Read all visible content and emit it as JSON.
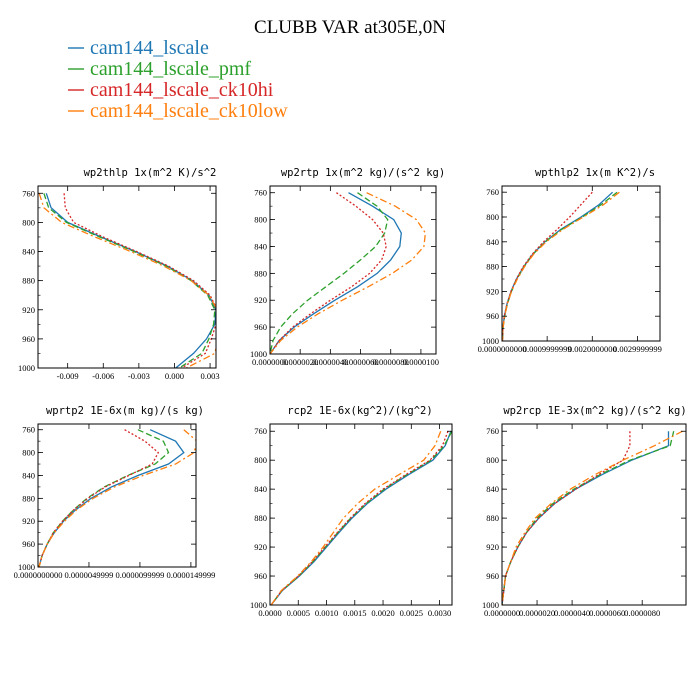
{
  "figure": {
    "title": "CLUBB VAR at305E,0N",
    "legend": [
      {
        "label": "cam144_lscale",
        "color": "#1f77b4"
      },
      {
        "label": "cam144_lscale_pmf",
        "color": "#2ca02c"
      },
      {
        "label": "cam144_lscale_ck10hi",
        "color": "#d62728"
      },
      {
        "label": "cam144_lscale_ck10low",
        "color": "#ff7f0e"
      }
    ]
  },
  "chart_data": [
    {
      "type": "line",
      "title": "wp2thlp  1x(m^2 K)/s^2",
      "xlim": [
        -0.0115,
        0.0035
      ],
      "ylim": [
        1000,
        750
      ],
      "xtick_values": [
        -0.009,
        -0.006,
        -0.003,
        0.0,
        0.003
      ],
      "xtick_labels": [
        "-0.009",
        "-0.006",
        "-0.003",
        "0.000",
        "0.003"
      ],
      "ytick_values": [
        760,
        800,
        840,
        880,
        920,
        960,
        1000
      ],
      "ytick_labels": [
        "760",
        "800",
        "840",
        "880",
        "920",
        "960",
        "1000"
      ],
      "y": [
        760,
        780,
        800,
        820,
        840,
        860,
        880,
        900,
        920,
        940,
        960,
        980,
        1000
      ],
      "series": [
        {
          "name": "cam144_lscale",
          "color": "#1f77b4",
          "dash": "solid",
          "values": [
            -0.0108,
            -0.0104,
            -0.009,
            -0.0062,
            -0.0033,
            -0.0006,
            0.0015,
            0.0029,
            0.0035,
            0.0034,
            0.0027,
            0.0016,
            0.0001
          ]
        },
        {
          "name": "cam144_lscale_pmf",
          "color": "#2ca02c",
          "dash": "dash",
          "values": [
            -0.011,
            -0.0106,
            -0.0091,
            -0.0063,
            -0.0034,
            -0.0007,
            0.0014,
            0.0028,
            0.0034,
            0.0033,
            0.0029,
            0.0023,
            0.0004
          ]
        },
        {
          "name": "cam144_lscale_ck10hi",
          "color": "#d62728",
          "dash": "dot",
          "values": [
            -0.0093,
            -0.0092,
            -0.0085,
            -0.006,
            -0.0032,
            -0.0005,
            0.0016,
            0.003,
            0.0036,
            0.0035,
            0.0031,
            0.0026,
            0.0006
          ]
        },
        {
          "name": "cam144_lscale_ck10low",
          "color": "#ff7f0e",
          "dash": "dashdot",
          "values": [
            -0.0114,
            -0.011,
            -0.0095,
            -0.0067,
            -0.0037,
            -0.0009,
            0.0014,
            0.0029,
            0.0036,
            0.0038,
            0.0037,
            0.0034,
            0.001
          ]
        }
      ]
    },
    {
      "type": "line",
      "title": "wp2rtp  1x(m^2 kg)/(s^2 kg)",
      "xlim": [
        0.0,
        1.1e-05
      ],
      "ylim": [
        1000,
        750
      ],
      "xtick_values": [
        0.0,
        2e-06,
        4e-06,
        6e-06,
        8e-06,
        1e-05
      ],
      "xtick_labels": [
        "0.0000000",
        "0.0000020",
        "0.0000040",
        "0.0000060",
        "0.0000080",
        "0.0000100"
      ],
      "ytick_values": [
        760,
        800,
        840,
        880,
        920,
        960,
        1000
      ],
      "ytick_labels": [
        "760",
        "800",
        "840",
        "880",
        "920",
        "960",
        "1000"
      ],
      "y": [
        760,
        780,
        800,
        820,
        840,
        860,
        880,
        900,
        920,
        940,
        960,
        980,
        1000
      ],
      "series": [
        {
          "name": "cam144_lscale",
          "color": "#1f77b4",
          "dash": "solid",
          "values": [
            5.2e-06,
            6.8e-06,
            8.2e-06,
            8.7e-06,
            8.6e-06,
            8e-06,
            7.1e-06,
            5.8e-06,
            4.3e-06,
            2.9e-06,
            1.6e-06,
            6e-07,
            0.0
          ]
        },
        {
          "name": "cam144_lscale_pmf",
          "color": "#2ca02c",
          "dash": "dash",
          "values": [
            5.8e-06,
            7.1e-06,
            7.8e-06,
            7.6e-06,
            7e-06,
            6e-06,
            4.9e-06,
            3.7e-06,
            2.5e-06,
            1.5e-06,
            7e-07,
            2e-07,
            0.0
          ]
        },
        {
          "name": "cam144_lscale_ck10hi",
          "color": "#d62728",
          "dash": "dot",
          "values": [
            4.4e-06,
            5.7e-06,
            6.8e-06,
            7.5e-06,
            7.7e-06,
            7.4e-06,
            6.6e-06,
            5.4e-06,
            4e-06,
            2.7e-06,
            1.5e-06,
            6e-07,
            0.0
          ]
        },
        {
          "name": "cam144_lscale_ck10low",
          "color": "#ff7f0e",
          "dash": "dashdot",
          "values": [
            6.4e-06,
            8.3e-06,
            9.7e-06,
            1.03e-05,
            1.02e-05,
            9.4e-06,
            8.1e-06,
            6.5e-06,
            4.8e-06,
            3.2e-06,
            1.8e-06,
            7e-07,
            0.0
          ]
        }
      ]
    },
    {
      "type": "line",
      "title": "wpthlp2  1x(m K^2)/s",
      "xlim": [
        0.0,
        0.0035
      ],
      "ylim": [
        1000,
        750
      ],
      "xtick_values": [
        0.0,
        0.001,
        0.002,
        0.003
      ],
      "xtick_labels": [
        "0.0000000000",
        "0.0009999999",
        "0.0020000000",
        "0.0029999999"
      ],
      "ytick_values": [
        760,
        800,
        840,
        880,
        920,
        960,
        1000
      ],
      "ytick_labels": [
        "760",
        "800",
        "840",
        "880",
        "920",
        "960",
        "1000"
      ],
      "y": [
        760,
        780,
        800,
        820,
        840,
        860,
        880,
        900,
        920,
        940,
        960,
        980,
        1000
      ],
      "series": [
        {
          "name": "cam144_lscale",
          "color": "#1f77b4",
          "dash": "solid",
          "values": [
            0.00245,
            0.00215,
            0.00175,
            0.0013,
            0.00095,
            0.00068,
            0.00048,
            0.00032,
            0.0002,
            0.00011,
            5e-05,
            2e-05,
            1e-05
          ]
        },
        {
          "name": "cam144_lscale_pmf",
          "color": "#2ca02c",
          "dash": "dash",
          "values": [
            0.00255,
            0.0022,
            0.00178,
            0.00132,
            0.00096,
            0.00069,
            0.00049,
            0.00033,
            0.00021,
            0.00012,
            6e-05,
            2e-05,
            1e-05
          ]
        },
        {
          "name": "cam144_lscale_ck10hi",
          "color": "#d62728",
          "dash": "dot",
          "values": [
            0.002,
            0.00175,
            0.0015,
            0.00122,
            0.00092,
            0.00067,
            0.00047,
            0.00032,
            0.0002,
            0.00011,
            5e-05,
            2e-05,
            1e-05
          ]
        },
        {
          "name": "cam144_lscale_ck10low",
          "color": "#ff7f0e",
          "dash": "dashdot",
          "values": [
            0.0026,
            0.00225,
            0.0018,
            0.00135,
            0.00098,
            0.0007,
            0.0005,
            0.00034,
            0.00021,
            0.00012,
            6e-05,
            2e-05,
            1e-05
          ]
        }
      ]
    },
    {
      "type": "line",
      "title": "wprtp2  1E-6x(m kg)/(s kg)",
      "xlim": [
        0.0,
        1.55e-05
      ],
      "ylim": [
        1000,
        750
      ],
      "xtick_values": [
        0.0,
        5e-06,
        1e-05,
        1.5e-05
      ],
      "xtick_labels": [
        "0.0000000000",
        "0.0000049999",
        "0.0000099999",
        "0.0000149999"
      ],
      "ytick_values": [
        760,
        800,
        840,
        880,
        920,
        960,
        1000
      ],
      "ytick_labels": [
        "760",
        "800",
        "840",
        "880",
        "920",
        "960",
        "1000"
      ],
      "y": [
        760,
        780,
        800,
        820,
        840,
        860,
        880,
        900,
        920,
        940,
        960,
        980,
        1000
      ],
      "series": [
        {
          "name": "cam144_lscale",
          "color": "#1f77b4",
          "dash": "solid",
          "values": [
            1.1e-05,
            1.35e-05,
            1.43e-05,
            1.28e-05,
            9.8e-06,
            7.2e-06,
            5.2e-06,
            3.7e-06,
            2.5e-06,
            1.6e-06,
            9e-07,
            4e-07,
            1e-07
          ]
        },
        {
          "name": "cam144_lscale_pmf",
          "color": "#2ca02c",
          "dash": "dash",
          "values": [
            9.8e-06,
            1.23e-05,
            1.28e-05,
            1.15e-05,
            8.8e-06,
            6.5e-06,
            4.8e-06,
            3.5e-06,
            2.4e-06,
            1.5e-06,
            9e-07,
            4e-07,
            1e-07
          ]
        },
        {
          "name": "cam144_lscale_ck10hi",
          "color": "#d62728",
          "dash": "dot",
          "values": [
            8.5e-06,
            1.05e-05,
            1.18e-05,
            1.12e-05,
            8.9e-06,
            6.6e-06,
            4.9e-06,
            3.5e-06,
            2.4e-06,
            1.5e-06,
            9e-07,
            4e-07,
            1e-07
          ]
        },
        {
          "name": "cam144_lscale_ck10low",
          "color": "#ff7f0e",
          "dash": "dashdot",
          "values": [
            1.43e-05,
            1.56e-05,
            1.53e-05,
            1.35e-05,
            1.03e-05,
            7.5e-06,
            5.4e-06,
            3.8e-06,
            2.6e-06,
            1.6e-06,
            9e-07,
            4e-07,
            1e-07
          ]
        }
      ]
    },
    {
      "type": "line",
      "title": "rcp2  1E-6x(kg^2)/(kg^2)",
      "xlim": [
        0.0,
        0.00322
      ],
      "ylim": [
        1000,
        750
      ],
      "xtick_values": [
        0.0,
        0.0005,
        0.001,
        0.0015,
        0.002,
        0.0025,
        0.003
      ],
      "xtick_labels": [
        "0.0000",
        "0.0005",
        "0.0010",
        "0.0015",
        "0.0020",
        "0.0025",
        "0.0030"
      ],
      "ytick_values": [
        760,
        800,
        840,
        880,
        920,
        960,
        1000
      ],
      "ytick_labels": [
        "760",
        "800",
        "840",
        "880",
        "920",
        "960",
        "1000"
      ],
      "y": [
        760,
        780,
        800,
        820,
        840,
        860,
        880,
        900,
        920,
        940,
        960,
        980,
        1000
      ],
      "series": [
        {
          "name": "cam144_lscale",
          "color": "#1f77b4",
          "dash": "solid",
          "values": [
            0.0032,
            0.0031,
            0.00288,
            0.00245,
            0.00205,
            0.00172,
            0.00145,
            0.00122,
            0.001,
            0.00078,
            0.00052,
            0.00022,
            2e-05
          ]
        },
        {
          "name": "cam144_lscale_pmf",
          "color": "#2ca02c",
          "dash": "dash",
          "values": [
            0.00322,
            0.00308,
            0.00285,
            0.00242,
            0.00202,
            0.0017,
            0.00143,
            0.0012,
            0.00098,
            0.00076,
            0.00051,
            0.00021,
            2e-05
          ]
        },
        {
          "name": "cam144_lscale_ck10hi",
          "color": "#d62728",
          "dash": "dot",
          "values": [
            0.00315,
            0.00305,
            0.00283,
            0.0024,
            0.002,
            0.00168,
            0.00142,
            0.00119,
            0.00097,
            0.00075,
            0.0005,
            0.00021,
            2e-05
          ]
        },
        {
          "name": "cam144_lscale_ck10low",
          "color": "#ff7f0e",
          "dash": "dashdot",
          "values": [
            0.00302,
            0.00292,
            0.00272,
            0.00228,
            0.00185,
            0.00155,
            0.0013,
            0.00112,
            0.00094,
            0.00073,
            0.00049,
            0.0002,
            2e-05
          ]
        }
      ]
    },
    {
      "type": "line",
      "title": "wp2rcp  1E-3x(m^2 kg)/(s^2 kg)",
      "xlim": [
        0.0,
        1.05e-05
      ],
      "ylim": [
        1000,
        750
      ],
      "xtick_values": [
        0.0,
        2e-06,
        4e-06,
        6e-06,
        8e-06
      ],
      "xtick_labels": [
        "0.0000000",
        "0.0000020",
        "0.0000040",
        "0.0000060",
        "0.0000080"
      ],
      "ytick_values": [
        760,
        800,
        840,
        880,
        920,
        960,
        1000
      ],
      "ytick_labels": [
        "760",
        "800",
        "840",
        "880",
        "920",
        "960",
        "1000"
      ],
      "y": [
        760,
        780,
        800,
        820,
        840,
        860,
        880,
        900,
        920,
        940,
        960,
        980,
        1000
      ],
      "series": [
        {
          "name": "cam144_lscale",
          "color": "#1f77b4",
          "dash": "solid",
          "values": [
            9.5e-06,
            9.5e-06,
            7.4e-06,
            5.7e-06,
            4.2e-06,
            3e-06,
            2.1e-06,
            1.4e-06,
            9e-07,
            5e-07,
            2e-07,
            1e-07,
            0.0
          ]
        },
        {
          "name": "cam144_lscale_pmf",
          "color": "#2ca02c",
          "dash": "dash",
          "values": [
            9.8e-06,
            9.6e-06,
            7.3e-06,
            5.6e-06,
            4.1e-06,
            2.9e-06,
            2e-06,
            1.4e-06,
            9e-07,
            5e-07,
            2e-07,
            1e-07,
            0.0
          ]
        },
        {
          "name": "cam144_lscale_ck10hi",
          "color": "#d62728",
          "dash": "dot",
          "values": [
            7.3e-06,
            7.3e-06,
            6.9e-06,
            5.5e-06,
            4.2e-06,
            3e-06,
            2.1e-06,
            1.4e-06,
            9e-07,
            5e-07,
            2e-07,
            1e-07,
            0.0
          ]
        },
        {
          "name": "cam144_lscale_ck10low",
          "color": "#ff7f0e",
          "dash": "dashdot",
          "values": [
            1.03e-05,
            8.7e-06,
            6.9e-06,
            5.3e-06,
            3.9e-06,
            2.8e-06,
            1.9e-06,
            1.3e-06,
            8e-07,
            5e-07,
            2e-07,
            1e-07,
            0.0
          ]
        }
      ]
    }
  ]
}
